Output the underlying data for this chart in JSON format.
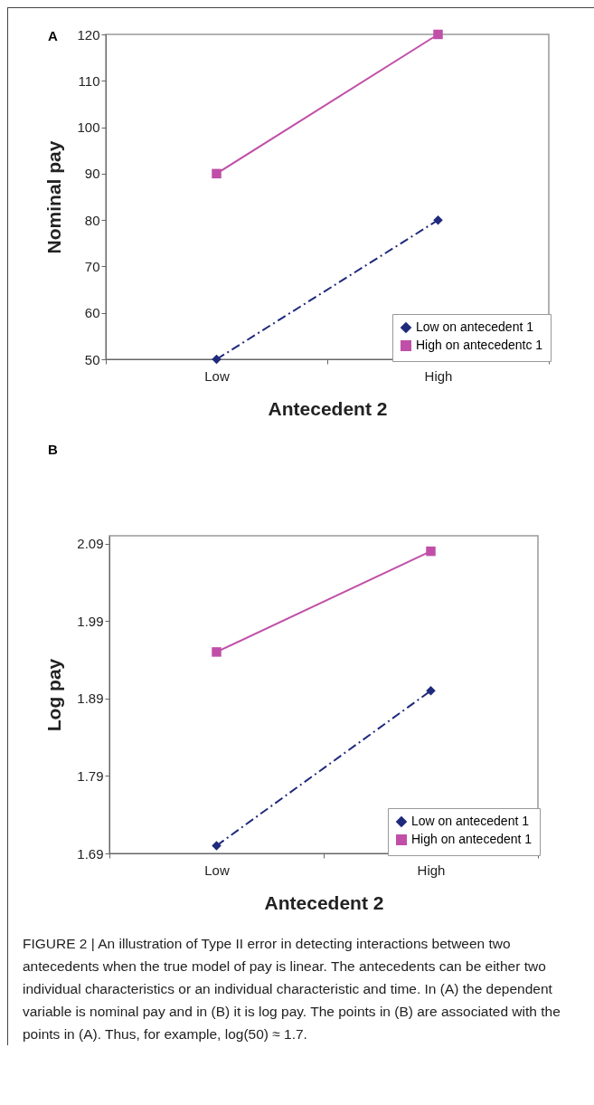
{
  "chart_data": [
    {
      "type": "line",
      "categories": [
        "Low",
        "High"
      ],
      "xlabel": "Antecedent 2",
      "ylabel": "Nominal pay",
      "ylim": [
        50,
        120
      ],
      "yticks": [
        50,
        60,
        70,
        80,
        90,
        100,
        110,
        120
      ],
      "grid": false,
      "legend": "bottom right",
      "annotations": [
        "A"
      ],
      "series": [
        {
          "name": "Low on antecedent 1",
          "color": "#1f2a7c",
          "values": [
            50,
            80
          ],
          "marker": "diamond",
          "line_style": "dashed"
        },
        {
          "name": "High on antecedentc 1",
          "color": "#c04fa8",
          "values": [
            90,
            120
          ],
          "marker": "square",
          "line_style": "solid"
        }
      ]
    },
    {
      "type": "line",
      "categories": [
        "Low",
        "High"
      ],
      "xlabel": "Antecedent 2",
      "ylabel": "Log pay",
      "ylim": [
        1.69,
        2.1
      ],
      "yticks": [
        1.69,
        1.79,
        1.89,
        1.99,
        2.09
      ],
      "grid": false,
      "legend": "bottom right",
      "annotations": [
        "B",
        "FIGURE 2 | An illustration of Type II error in detecting interactions between two antecedents when the true model of pay is linear. The antecedents can be either two individual characteristics or an individual characteristic and time. In (A) the dependent variable is nominal pay and in (B) it is log pay. The points in (B) are associated with the points in (A). Thus, for example, log(50) ≈ 1.7."
      ],
      "series": [
        {
          "name": "Low on antecedent 1",
          "color": "#1f2a7c",
          "values": [
            1.7,
            1.9
          ],
          "marker": "diamond",
          "line_style": "dashed"
        },
        {
          "name": "High on antecedent 1",
          "color": "#c04fa8",
          "values": [
            1.95,
            2.08
          ],
          "marker": "square",
          "line_style": "solid"
        }
      ]
    }
  ]
}
